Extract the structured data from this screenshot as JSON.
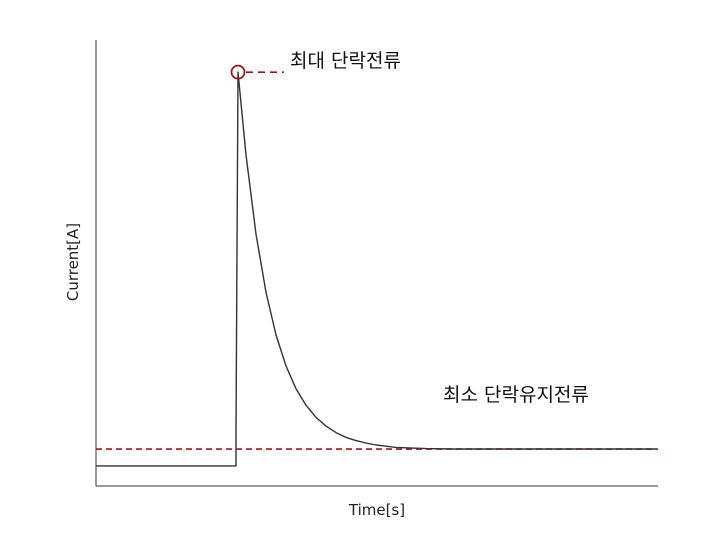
{
  "chart_data": {
    "type": "line",
    "xlabel": "Time[s]",
    "ylabel": "Current[A]",
    "grid": false,
    "series": [
      {
        "color": "#333333",
        "points": [
          [
            0,
            0.2
          ],
          [
            14,
            0.2
          ],
          [
            14,
            1.1
          ],
          [
            14.2,
            10
          ],
          [
            15,
            7.94
          ],
          [
            16,
            5.97
          ],
          [
            17,
            4.52
          ],
          [
            18,
            3.46
          ],
          [
            19,
            2.69
          ],
          [
            20,
            2.12
          ],
          [
            21,
            1.71
          ],
          [
            22,
            1.41
          ],
          [
            23,
            1.19
          ],
          [
            24,
            1.03
          ],
          [
            25,
            0.91
          ],
          [
            26,
            0.83
          ],
          [
            27,
            0.77
          ],
          [
            28,
            0.72
          ],
          [
            30,
            0.66
          ],
          [
            33,
            0.63
          ],
          [
            36,
            0.62
          ],
          [
            45,
            0.62
          ],
          [
            56,
            0.62
          ]
        ]
      }
    ],
    "reference_line": {
      "y": 0.62,
      "color": "#a31515",
      "style": "dashed",
      "label": "최소 단락유지전류"
    },
    "peak_marker": {
      "x": 14.2,
      "y": 10,
      "color": "#a31515",
      "label": "최대 단락전류"
    },
    "xlim": [
      0,
      56.2
    ],
    "ylim": [
      -0.3,
      10.8
    ]
  }
}
